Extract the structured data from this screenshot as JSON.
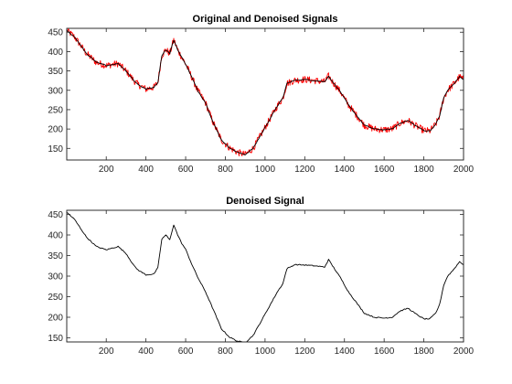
{
  "chart_data": [
    {
      "type": "line",
      "title": "Original and Denoised Signals",
      "xlim": [
        1,
        2000
      ],
      "ylim": [
        120,
        460
      ],
      "x_ticks": [
        200,
        400,
        600,
        800,
        1000,
        1200,
        1400,
        1600,
        1800,
        2000
      ],
      "y_ticks": [
        150,
        200,
        250,
        300,
        350,
        400,
        450
      ],
      "grid": false,
      "series": [
        {
          "color": "#ff0000",
          "noisy": true,
          "x": [
            1,
            40,
            100,
            150,
            200,
            260,
            300,
            340,
            360,
            400,
            440,
            460,
            480,
            500,
            520,
            540,
            560,
            580,
            600,
            630,
            660,
            700,
            740,
            780,
            820,
            860,
            900,
            940,
            980,
            1020,
            1060,
            1090,
            1110,
            1150,
            1200,
            1250,
            1300,
            1320,
            1340,
            1380,
            1420,
            1460,
            1500,
            1550,
            1600,
            1640,
            1680,
            1720,
            1760,
            1800,
            1830,
            1860,
            1880,
            1900,
            1920,
            1950,
            1980,
            2000
          ],
          "y": [
            455,
            438,
            395,
            372,
            364,
            369,
            350,
            325,
            315,
            303,
            308,
            320,
            390,
            405,
            395,
            430,
            405,
            385,
            368,
            335,
            300,
            268,
            215,
            172,
            152,
            140,
            134,
            150,
            186,
            222,
            258,
            280,
            318,
            326,
            328,
            325,
            322,
            337,
            322,
            296,
            262,
            236,
            210,
            200,
            198,
            200,
            215,
            222,
            208,
            196,
            195,
            212,
            235,
            280,
            300,
            316,
            335,
            328
          ]
        },
        {
          "color": "#000000",
          "noisy": false,
          "x": [
            1,
            40,
            100,
            150,
            200,
            260,
            300,
            340,
            360,
            400,
            440,
            460,
            480,
            500,
            520,
            540,
            560,
            580,
            600,
            630,
            660,
            700,
            740,
            780,
            820,
            860,
            900,
            940,
            980,
            1020,
            1060,
            1090,
            1110,
            1150,
            1200,
            1250,
            1300,
            1320,
            1340,
            1380,
            1420,
            1460,
            1500,
            1550,
            1600,
            1640,
            1680,
            1720,
            1760,
            1800,
            1830,
            1860,
            1880,
            1900,
            1920,
            1950,
            1980,
            2000
          ],
          "y": [
            455,
            438,
            395,
            372,
            364,
            369,
            350,
            325,
            315,
            303,
            308,
            320,
            390,
            405,
            395,
            430,
            405,
            385,
            368,
            335,
            300,
            268,
            215,
            172,
            152,
            140,
            134,
            150,
            186,
            222,
            258,
            280,
            318,
            326,
            328,
            325,
            322,
            337,
            322,
            296,
            262,
            236,
            210,
            200,
            198,
            200,
            215,
            222,
            208,
            196,
            195,
            212,
            235,
            280,
            300,
            316,
            335,
            328
          ]
        }
      ]
    },
    {
      "type": "line",
      "title": "Denoised Signal",
      "xlim": [
        1,
        2000
      ],
      "ylim": [
        140,
        460
      ],
      "x_ticks": [
        200,
        400,
        600,
        800,
        1000,
        1200,
        1400,
        1600,
        1800,
        2000
      ],
      "y_ticks": [
        150,
        200,
        250,
        300,
        350,
        400,
        450
      ],
      "grid": false,
      "series": [
        {
          "color": "#000000",
          "noisy": false,
          "x": [
            1,
            40,
            100,
            150,
            200,
            260,
            300,
            340,
            360,
            400,
            440,
            460,
            480,
            500,
            520,
            540,
            560,
            580,
            600,
            630,
            660,
            700,
            740,
            780,
            820,
            860,
            900,
            940,
            980,
            1020,
            1060,
            1090,
            1110,
            1150,
            1200,
            1250,
            1300,
            1320,
            1340,
            1380,
            1420,
            1460,
            1500,
            1550,
            1600,
            1640,
            1680,
            1720,
            1760,
            1800,
            1830,
            1860,
            1880,
            1900,
            1920,
            1950,
            1980,
            2000
          ],
          "y": [
            455,
            438,
            395,
            372,
            364,
            372,
            355,
            325,
            315,
            303,
            305,
            320,
            390,
            400,
            388,
            425,
            400,
            380,
            365,
            330,
            298,
            262,
            218,
            172,
            152,
            142,
            138,
            156,
            190,
            225,
            260,
            282,
            318,
            328,
            327,
            325,
            322,
            340,
            325,
            296,
            262,
            236,
            210,
            200,
            198,
            200,
            215,
            222,
            208,
            196,
            196,
            210,
            232,
            278,
            300,
            316,
            335,
            328
          ]
        }
      ]
    }
  ]
}
